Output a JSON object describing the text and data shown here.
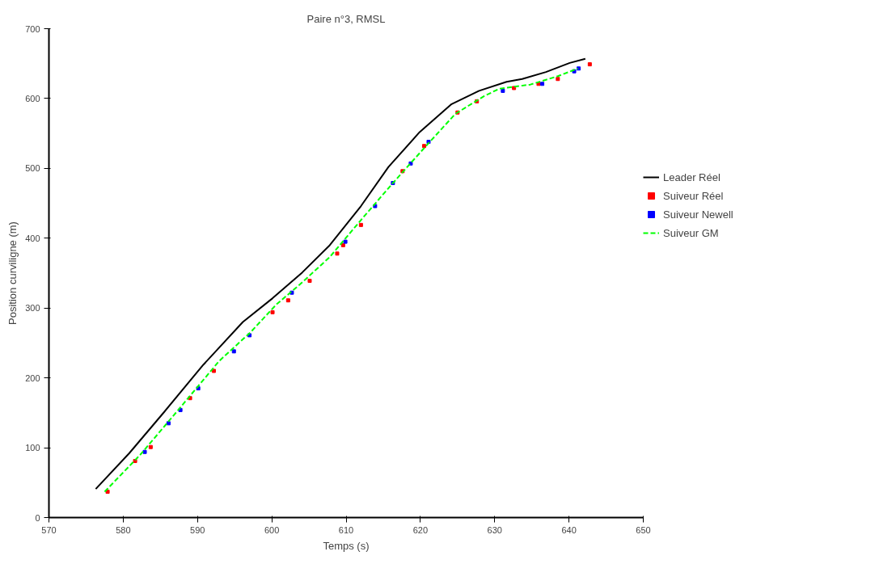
{
  "chart_data": {
    "type": "line",
    "title": "Paire n°3, RMSL",
    "xlabel": "Temps (s)",
    "ylabel": "Position curviligne (m)",
    "xlim": [
      570,
      650
    ],
    "xticks": [
      570,
      580,
      590,
      600,
      610,
      620,
      630,
      640,
      650
    ],
    "ylim": [
      0,
      700
    ],
    "yticks": [
      0,
      100,
      200,
      300,
      400,
      500,
      600,
      700
    ],
    "grid": false,
    "legend": "right",
    "series": [
      {
        "name": "Leader Réel",
        "color": "#000000",
        "type": "line",
        "line_style": "solid",
        "x": [
          576.3,
          580.8,
          585.5,
          590.8,
          596.1,
          600.1,
          604.1,
          607.8,
          612.0,
          615.7,
          619.9,
          624.2,
          627.9,
          631.6,
          633.7,
          636.9,
          640.1,
          642.2
        ],
        "values": [
          41,
          92,
          151,
          219,
          280,
          314,
          351,
          390,
          446,
          502,
          552,
          592,
          611,
          624,
          628,
          638,
          651,
          657
        ]
      },
      {
        "name": "Suiveur Réel",
        "color": "#ff0000",
        "type": "scatter",
        "marker": "square",
        "x": [
          577.9,
          581.6,
          583.7,
          589.0,
          592.2,
          600.1,
          602.2,
          605.1,
          608.8,
          609.6,
          612.0,
          617.6,
          620.5,
          625.0,
          627.6,
          632.6,
          635.9,
          638.5,
          642.8
        ],
        "values": [
          37,
          81,
          101,
          171,
          210,
          294,
          311,
          339,
          378,
          390,
          419,
          496,
          532,
          580,
          596,
          615,
          621,
          628,
          649
        ]
      },
      {
        "name": "Suiveur Newell",
        "color": "#0000ff",
        "type": "scatter",
        "marker": "square",
        "x": [
          582.9,
          586.1,
          587.7,
          590.1,
          594.9,
          597.0,
          602.7,
          609.9,
          613.9,
          616.3,
          618.7,
          621.1,
          631.1,
          636.4,
          640.7,
          641.3
        ],
        "values": [
          94,
          135,
          154,
          185,
          238,
          261,
          322,
          395,
          446,
          479,
          507,
          538,
          611,
          621,
          639,
          643
        ]
      },
      {
        "name": "Suiveur GM",
        "color": "#00ff00",
        "type": "line",
        "line_style": "dashed",
        "x": [
          577.5,
          582.3,
          587.4,
          592.9,
          597.2,
          600.6,
          603.8,
          607.8,
          612.0,
          616.3,
          620.5,
          624.7,
          628.5,
          630.6,
          634.8,
          638.5,
          641.2
        ],
        "values": [
          37,
          90,
          154,
          224,
          266,
          305,
          334,
          373,
          426,
          479,
          529,
          578,
          603,
          614,
          620,
          632,
          643
        ]
      }
    ]
  }
}
